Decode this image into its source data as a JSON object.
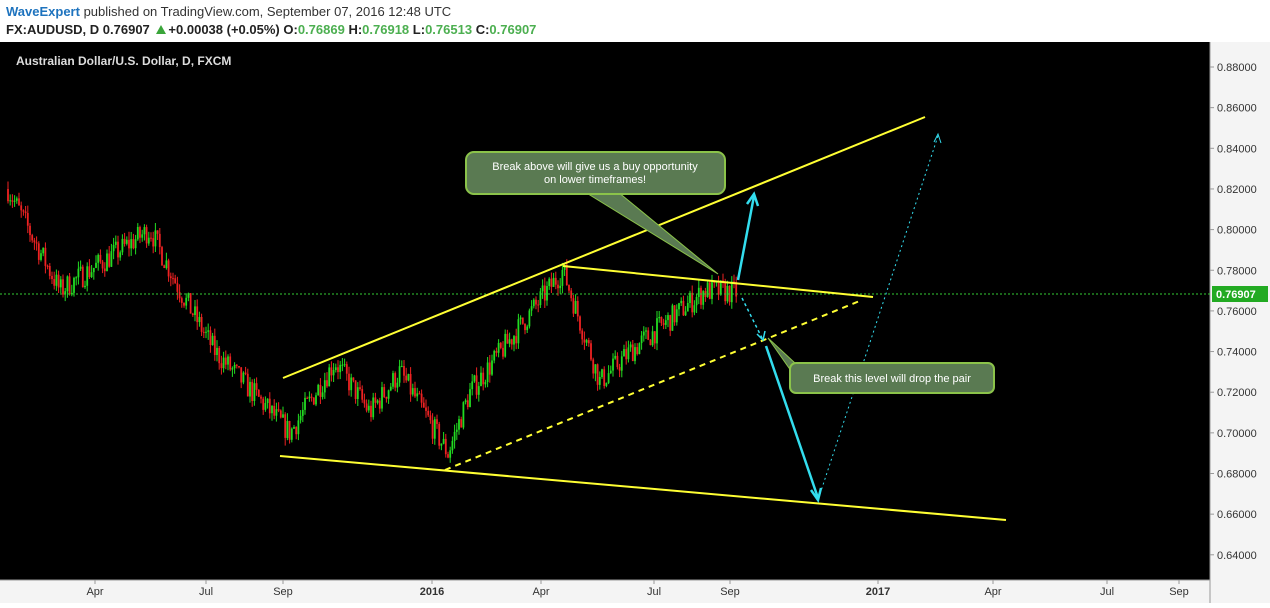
{
  "header": {
    "author": "WaveExpert",
    "published": "published on TradingView.com, September 07, 2016 12:48 UTC",
    "symbol": "FX:AUDUSD, D",
    "last": "0.76907",
    "change": "+0.00038 (+0.05%)",
    "open_label": "O:",
    "open": "0.76869",
    "high_label": "H:",
    "high": "0.76918",
    "low_label": "L:",
    "low": "0.76513",
    "close_label": "C:",
    "close": "0.76907"
  },
  "colors": {
    "background": "#000000",
    "bull": "#22dd22",
    "bear": "#ee2222",
    "trendline": "#ffff33",
    "arrow": "#33ddee",
    "price_line": "#33cc33",
    "callout_bg": "#5a7a52",
    "callout_border": "#8bc34a"
  },
  "chart_data": {
    "type": "candlestick",
    "title": "Australian Dollar/U.S. Dollar, D, FXCM",
    "ylim": [
      0.63,
      0.89
    ],
    "y_ticks": [
      "0.88000",
      "0.86000",
      "0.84000",
      "0.82000",
      "0.80000",
      "0.78000",
      "0.76000",
      "0.74000",
      "0.72000",
      "0.70000",
      "0.68000",
      "0.66000",
      "0.64000"
    ],
    "x_ticks": [
      "Apr",
      "Jul",
      "Sep",
      "2016",
      "Apr",
      "Jul",
      "Sep",
      "2017",
      "Apr",
      "Jul",
      "Sep"
    ],
    "current_price_label": "0.76907",
    "approx_close_path": [
      {
        "date": "2015-01",
        "close": 0.82
      },
      {
        "date": "2015-03",
        "close": 0.77
      },
      {
        "date": "2015-05",
        "close": 0.8
      },
      {
        "date": "2015-06",
        "close": 0.77
      },
      {
        "date": "2015-07",
        "close": 0.74
      },
      {
        "date": "2015-09",
        "close": 0.7
      },
      {
        "date": "2015-10",
        "close": 0.735
      },
      {
        "date": "2015-11",
        "close": 0.71
      },
      {
        "date": "2015-12",
        "close": 0.73
      },
      {
        "date": "2016-01",
        "close": 0.69
      },
      {
        "date": "2016-02",
        "close": 0.72
      },
      {
        "date": "2016-04",
        "close": 0.78
      },
      {
        "date": "2016-05",
        "close": 0.725
      },
      {
        "date": "2016-06",
        "close": 0.74
      },
      {
        "date": "2016-08",
        "close": 0.77
      },
      {
        "date": "2016-09",
        "close": 0.76907
      }
    ],
    "annotations": [
      "Break above will give us a buy opportunity on lower timeframes!",
      "Break this level will drop the pair"
    ]
  }
}
